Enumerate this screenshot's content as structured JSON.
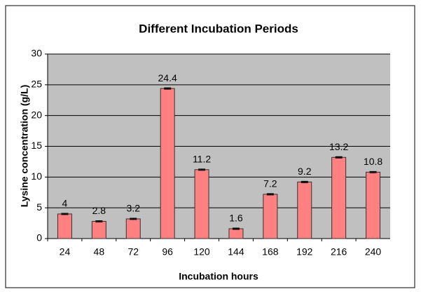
{
  "chart_data": {
    "type": "bar",
    "title": "Different Incubation Periods",
    "x_label": "Incubation hours",
    "y_label": "Lysine concentration (g/L)",
    "categories": [
      "24",
      "48",
      "72",
      "96",
      "120",
      "144",
      "168",
      "192",
      "216",
      "240"
    ],
    "values": [
      4,
      2.8,
      3.2,
      24.4,
      11.2,
      1.6,
      7.2,
      9.2,
      13.2,
      10.8
    ],
    "errors": [
      0.1,
      0.1,
      0.1,
      0.1,
      0.1,
      0.1,
      0.1,
      0.1,
      0.1,
      0.1
    ],
    "color": "#ff8080",
    "plot_background": "#c0c0c0",
    "ylim": [
      0,
      30
    ],
    "yticks": [
      0,
      5,
      10,
      15,
      20,
      25,
      30
    ],
    "grid": true
  }
}
